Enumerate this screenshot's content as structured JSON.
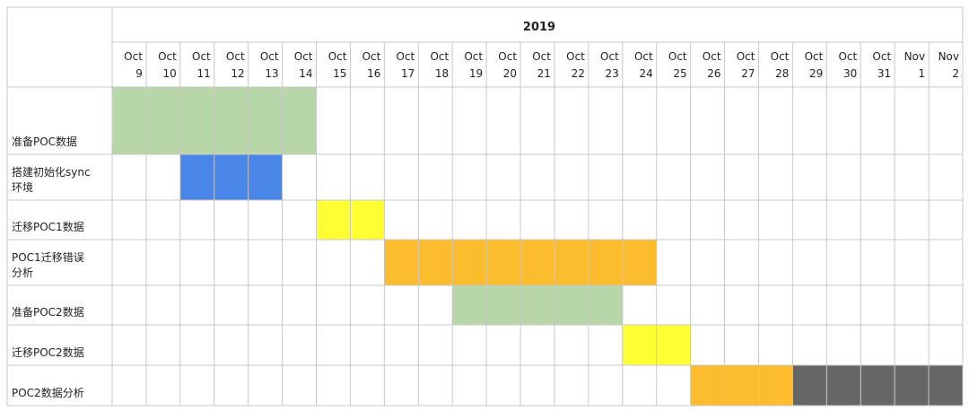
{
  "chart_data": {
    "type": "gantt",
    "title": "2019",
    "columns": [
      {
        "month": "Oct",
        "day": "9"
      },
      {
        "month": "Oct",
        "day": "10"
      },
      {
        "month": "Oct",
        "day": "11"
      },
      {
        "month": "Oct",
        "day": "12"
      },
      {
        "month": "Oct",
        "day": "13"
      },
      {
        "month": "Oct",
        "day": "14"
      },
      {
        "month": "Oct",
        "day": "15"
      },
      {
        "month": "Oct",
        "day": "16"
      },
      {
        "month": "Oct",
        "day": "17"
      },
      {
        "month": "Oct",
        "day": "18"
      },
      {
        "month": "Oct",
        "day": "19"
      },
      {
        "month": "Oct",
        "day": "20"
      },
      {
        "month": "Oct",
        "day": "21"
      },
      {
        "month": "Oct",
        "day": "22"
      },
      {
        "month": "Oct",
        "day": "23"
      },
      {
        "month": "Oct",
        "day": "24"
      },
      {
        "month": "Oct",
        "day": "25"
      },
      {
        "month": "Oct",
        "day": "26"
      },
      {
        "month": "Oct",
        "day": "27"
      },
      {
        "month": "Oct",
        "day": "28"
      },
      {
        "month": "Oct",
        "day": "29"
      },
      {
        "month": "Oct",
        "day": "30"
      },
      {
        "month": "Oct",
        "day": "31"
      },
      {
        "month": "Nov",
        "day": "1"
      },
      {
        "month": "Nov",
        "day": "2"
      }
    ],
    "tasks": [
      {
        "label_lines": [
          "准备POC数据"
        ],
        "bars": [
          {
            "start": "2019-10-09",
            "end": "2019-10-14",
            "color": "#b7d7a8"
          }
        ]
      },
      {
        "label_lines": [
          "搭建初始化sync",
          "环境"
        ],
        "bars": [
          {
            "start": "2019-10-11",
            "end": "2019-10-13",
            "color": "#4a86e8"
          }
        ]
      },
      {
        "label_lines": [
          "迁移POC1数据"
        ],
        "bars": [
          {
            "start": "2019-10-15",
            "end": "2019-10-16",
            "color": "#ffff33"
          }
        ]
      },
      {
        "label_lines": [
          "POC1迁移错误",
          "分析"
        ],
        "bars": [
          {
            "start": "2019-10-17",
            "end": "2019-10-24",
            "color": "#fbbc2e"
          }
        ]
      },
      {
        "label_lines": [
          "准备POC2数据"
        ],
        "bars": [
          {
            "start": "2019-10-19",
            "end": "2019-10-23",
            "color": "#b7d7a8"
          }
        ]
      },
      {
        "label_lines": [
          "迁移POC2数据"
        ],
        "bars": [
          {
            "start": "2019-10-24",
            "end": "2019-10-25",
            "color": "#ffff33"
          }
        ]
      },
      {
        "label_lines": [
          "POC2数据分析"
        ],
        "bars": [
          {
            "start": "2019-10-26",
            "end": "2019-10-28",
            "color": "#fbbc2e"
          },
          {
            "start": "2019-10-29",
            "end": "2019-11-02",
            "color": "#666666"
          }
        ]
      }
    ],
    "grid": true
  }
}
